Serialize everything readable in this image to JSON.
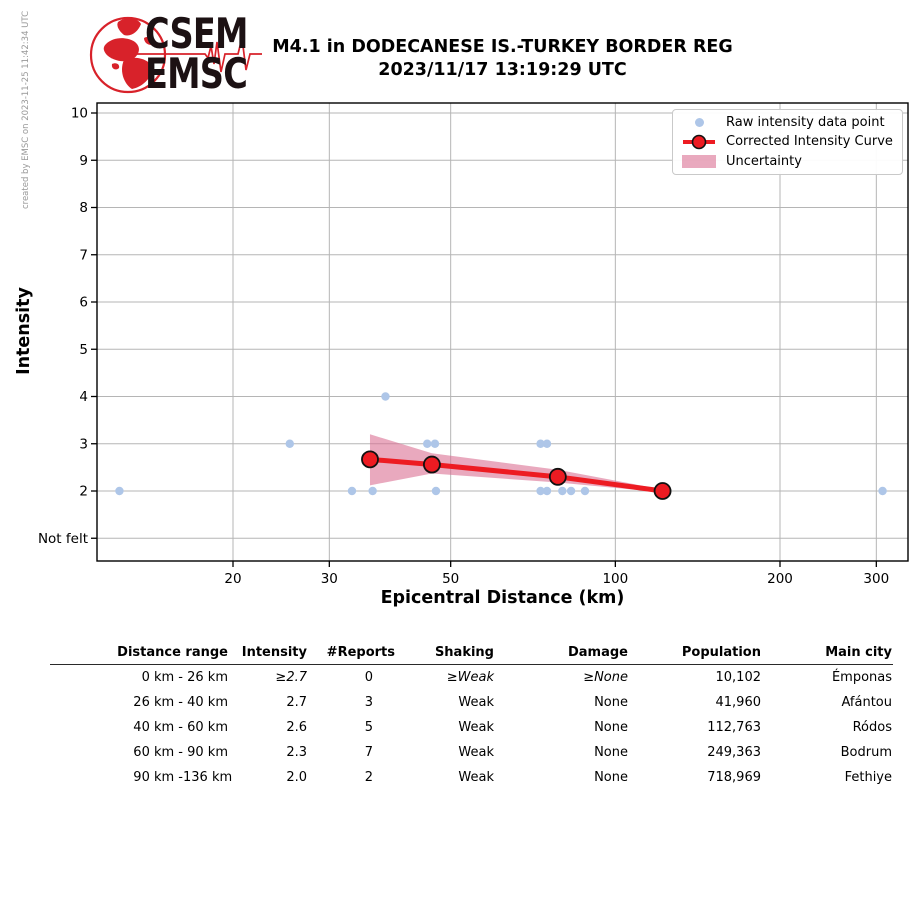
{
  "created_by": "created by EMSC on 2023-11-25 11:42:34 UTC",
  "logo": {
    "line1": "CSEM",
    "line2": "EMSC"
  },
  "title": {
    "line1": "M4.1 in DODECANESE IS.-TURKEY BORDER REG",
    "line2": "2023/11/17 13:19:29 UTC"
  },
  "chart_data": {
    "type": "scatter",
    "xlabel": "Epicentral Distance (km)",
    "ylabel": "Intensity",
    "x_scale": "log",
    "x_ticks": [
      20,
      30,
      50,
      100,
      200,
      300
    ],
    "x_range_km": [
      11.3,
      343
    ],
    "y_tick_values": [
      10,
      9,
      8,
      7,
      6,
      5,
      4,
      3,
      2,
      1
    ],
    "y_tick_labels": [
      "10",
      "9",
      "8",
      "7",
      "6",
      "5",
      "4",
      "3",
      "2",
      "Not felt"
    ],
    "grid": true,
    "legend_position": "upper right",
    "legend": [
      "Raw intensity data point",
      "Corrected Intensity Curve",
      "Uncertainty"
    ],
    "raw_points": [
      {
        "km": 12.4,
        "intensity": 2
      },
      {
        "km": 25.4,
        "intensity": 3
      },
      {
        "km": 33,
        "intensity": 2
      },
      {
        "km": 36,
        "intensity": 2
      },
      {
        "km": 38,
        "intensity": 4
      },
      {
        "km": 45.3,
        "intensity": 3
      },
      {
        "km": 46.8,
        "intensity": 3
      },
      {
        "km": 47,
        "intensity": 2
      },
      {
        "km": 73,
        "intensity": 3
      },
      {
        "km": 75,
        "intensity": 3
      },
      {
        "km": 73,
        "intensity": 2
      },
      {
        "km": 75,
        "intensity": 2
      },
      {
        "km": 80,
        "intensity": 2
      },
      {
        "km": 83,
        "intensity": 2
      },
      {
        "km": 88,
        "intensity": 2
      },
      {
        "km": 308,
        "intensity": 2
      }
    ],
    "corrected_curve": [
      {
        "km": 35.6,
        "intensity": 2.67
      },
      {
        "km": 46.2,
        "intensity": 2.56
      },
      {
        "km": 78.5,
        "intensity": 2.3
      },
      {
        "km": 122,
        "intensity": 2.0
      }
    ],
    "uncertainty_band": {
      "upper": [
        {
          "km": 35.6,
          "intensity": 3.2
        },
        {
          "km": 46.2,
          "intensity": 2.8
        },
        {
          "km": 78.5,
          "intensity": 2.45
        },
        {
          "km": 122,
          "intensity": 2.03
        }
      ],
      "lower": [
        {
          "km": 35.6,
          "intensity": 2.12
        },
        {
          "km": 46.2,
          "intensity": 2.37
        },
        {
          "km": 78.5,
          "intensity": 2.18
        },
        {
          "km": 122,
          "intensity": 1.97
        }
      ]
    },
    "colors": {
      "raw_point": "#aec6e8",
      "curve": "#ed1b22",
      "curve_marker_edge": "#111111",
      "uncertainty": "rgba(219,112,147,0.6)",
      "grid": "#b5b5b5",
      "axis": "#000000",
      "logo_red": "#d8222a"
    }
  },
  "table": {
    "headers": [
      "Distance range",
      "Intensity",
      "#Reports",
      "Shaking",
      "Damage",
      "Population",
      "Main city"
    ],
    "rows": [
      {
        "range_from": "0 km -",
        "range_to": "26 km",
        "intensity": "≥2.7",
        "reports": "0",
        "shaking": "≥Weak",
        "damage": "≥None",
        "population": "10,102",
        "main_city": "Émponas",
        "emphasis": true
      },
      {
        "range_from": "26 km -",
        "range_to": "40 km",
        "intensity": "2.7",
        "reports": "3",
        "shaking": "Weak",
        "damage": "None",
        "population": "41,960",
        "main_city": "Afántou",
        "emphasis": false
      },
      {
        "range_from": "40 km -",
        "range_to": "60 km",
        "intensity": "2.6",
        "reports": "5",
        "shaking": "Weak",
        "damage": "None",
        "population": "112,763",
        "main_city": "Ródos",
        "emphasis": false
      },
      {
        "range_from": "60 km -",
        "range_to": "90 km",
        "intensity": "2.3",
        "reports": "7",
        "shaking": "Weak",
        "damage": "None",
        "population": "249,363",
        "main_city": "Bodrum",
        "emphasis": false
      },
      {
        "range_from": "90 km -",
        "range_to": "136 km",
        "intensity": "2.0",
        "reports": "2",
        "shaking": "Weak",
        "damage": "None",
        "population": "718,969",
        "main_city": "Fethiye",
        "emphasis": false
      }
    ]
  }
}
